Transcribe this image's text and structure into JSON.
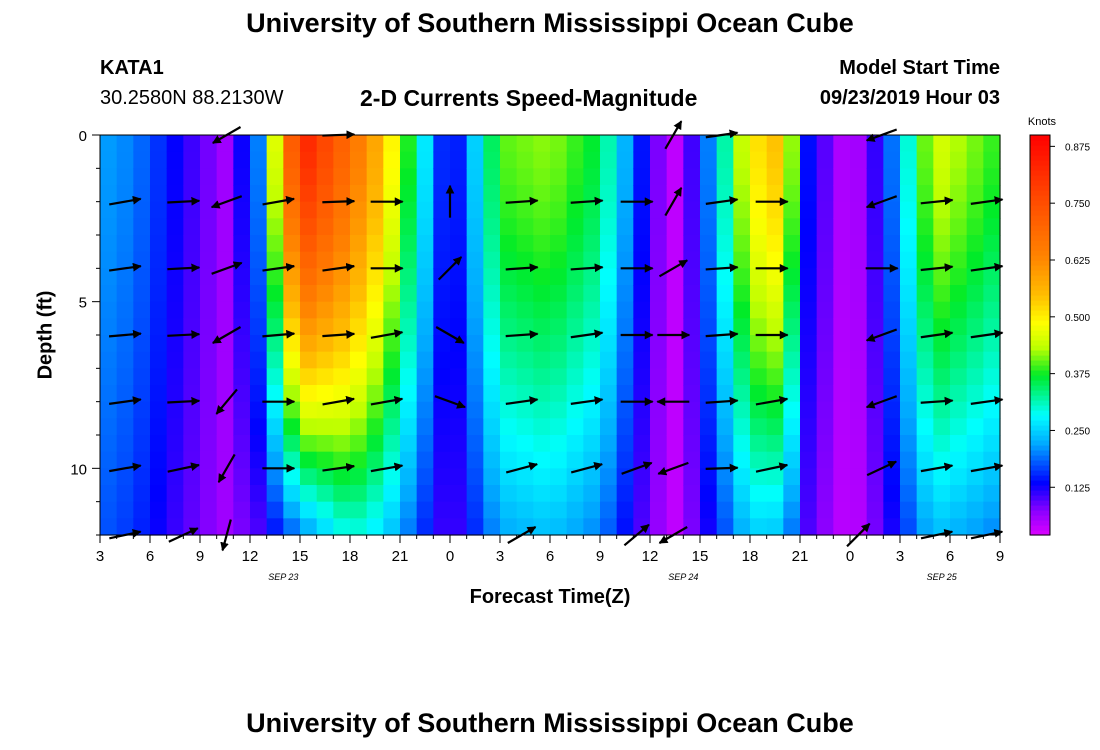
{
  "header": {
    "title": "University of Southern Mississippi Ocean Cube",
    "station_id": "KATA1",
    "station_coords": "30.2580N 88.2130W",
    "plot_title": "2-D Currents Speed-Magnitude",
    "model_start_label": "Model Start Time",
    "model_start_value": "09/23/2019 Hour 03"
  },
  "footer": {
    "title": "University of Southern Mississippi Ocean Cube"
  },
  "chart_data": {
    "type": "heatmap",
    "title": "2-D Currents Speed-Magnitude",
    "xlabel": "Forecast Time(Z)",
    "ylabel": "Depth (ft)",
    "xlim": [
      3,
      57
    ],
    "ylim": [
      12,
      0
    ],
    "x_tick_labels": [
      {
        "t": 3,
        "label": "3"
      },
      {
        "t": 6,
        "label": "6"
      },
      {
        "t": 9,
        "label": "9"
      },
      {
        "t": 12,
        "label": "12"
      },
      {
        "t": 15,
        "label": "15"
      },
      {
        "t": 18,
        "label": "18"
      },
      {
        "t": 21,
        "label": "21"
      },
      {
        "t": 24,
        "label": "0"
      },
      {
        "t": 27,
        "label": "3"
      },
      {
        "t": 30,
        "label": "6"
      },
      {
        "t": 33,
        "label": "9"
      },
      {
        "t": 36,
        "label": "12"
      },
      {
        "t": 39,
        "label": "15"
      },
      {
        "t": 42,
        "label": "18"
      },
      {
        "t": 45,
        "label": "21"
      },
      {
        "t": 48,
        "label": "0"
      },
      {
        "t": 51,
        "label": "3"
      },
      {
        "t": 54,
        "label": "6"
      },
      {
        "t": 57,
        "label": "9"
      }
    ],
    "date_labels": [
      {
        "t": 14,
        "label": "SEP 23"
      },
      {
        "t": 38,
        "label": "SEP 24"
      },
      {
        "t": 53.5,
        "label": "SEP 25"
      }
    ],
    "y_tick_labels": [
      {
        "d": 0,
        "label": "0"
      },
      {
        "d": 5,
        "label": "5"
      },
      {
        "d": 10,
        "label": "10"
      }
    ],
    "colorbar": {
      "unit": "Knots",
      "min": 0.02,
      "max": 0.9,
      "tick_values": [
        0.125,
        0.25,
        0.375,
        0.5,
        0.625,
        0.75,
        0.875
      ],
      "tick_labels": [
        "0.125",
        "0.250",
        "0.375",
        "0.500",
        "0.625",
        "0.750",
        "0.875"
      ]
    },
    "profiles": {
      "time_hours": [
        3,
        5,
        8,
        10.5,
        12.5,
        15,
        18,
        20,
        24,
        27,
        30,
        33,
        36,
        37.5,
        39,
        42,
        44,
        45.5,
        48,
        50,
        53,
        57
      ],
      "surface_speed_kn": [
        0.22,
        0.2,
        0.12,
        0.06,
        0.2,
        0.85,
        0.68,
        0.55,
        0.1,
        0.4,
        0.42,
        0.36,
        0.1,
        0.04,
        0.14,
        0.5,
        0.56,
        0.14,
        0.03,
        0.14,
        0.46,
        0.38
      ],
      "bottom_speed_kn": [
        0.18,
        0.16,
        0.1,
        0.06,
        0.1,
        0.2,
        0.3,
        0.26,
        0.09,
        0.22,
        0.24,
        0.2,
        0.08,
        0.04,
        0.1,
        0.25,
        0.24,
        0.1,
        0.03,
        0.1,
        0.24,
        0.2
      ]
    },
    "vector_depths_ft": [
      0,
      2,
      4,
      6,
      8,
      10,
      12
    ],
    "vectors": [
      {
        "t": 4.5,
        "dirs": [
          null,
          10,
          8,
          5,
          8,
          10,
          12
        ]
      },
      {
        "t": 8,
        "dirs": [
          null,
          3,
          3,
          3,
          3,
          12,
          25
        ]
      },
      {
        "t": 10.6,
        "dirs": [
          210,
          200,
          20,
          210,
          230,
          240,
          255
        ]
      },
      {
        "t": 13.7,
        "dirs": [
          null,
          10,
          8,
          5,
          0,
          0,
          null
        ]
      },
      {
        "t": 17.3,
        "dirs": [
          2,
          2,
          8,
          4,
          10,
          8,
          null
        ]
      },
      {
        "t": 20.2,
        "dirs": [
          null,
          0,
          0,
          10,
          10,
          10,
          null
        ]
      },
      {
        "t": 24,
        "dirs": [
          null,
          90,
          45,
          330,
          340,
          null,
          null
        ]
      },
      {
        "t": 28.3,
        "dirs": [
          null,
          4,
          4,
          4,
          8,
          15,
          30
        ]
      },
      {
        "t": 32.2,
        "dirs": [
          null,
          4,
          4,
          8,
          8,
          15,
          null
        ]
      },
      {
        "t": 35.2,
        "dirs": [
          null,
          0,
          0,
          0,
          0,
          20,
          40
        ]
      },
      {
        "t": 37.4,
        "dirs": [
          60,
          60,
          30,
          0,
          180,
          200,
          210
        ]
      },
      {
        "t": 40.3,
        "dirs": [
          8,
          8,
          4,
          4,
          4,
          2,
          null
        ]
      },
      {
        "t": 43.3,
        "dirs": [
          null,
          0,
          0,
          0,
          10,
          12,
          null
        ]
      },
      {
        "t": 48.5,
        "dirs": [
          null,
          null,
          null,
          null,
          null,
          null,
          45
        ]
      },
      {
        "t": 49.9,
        "dirs": [
          200,
          200,
          0,
          200,
          200,
          25,
          null
        ]
      },
      {
        "t": 53.2,
        "dirs": [
          null,
          6,
          6,
          8,
          4,
          10,
          12
        ]
      },
      {
        "t": 56.2,
        "dirs": [
          null,
          8,
          8,
          8,
          8,
          10,
          12
        ]
      }
    ]
  }
}
